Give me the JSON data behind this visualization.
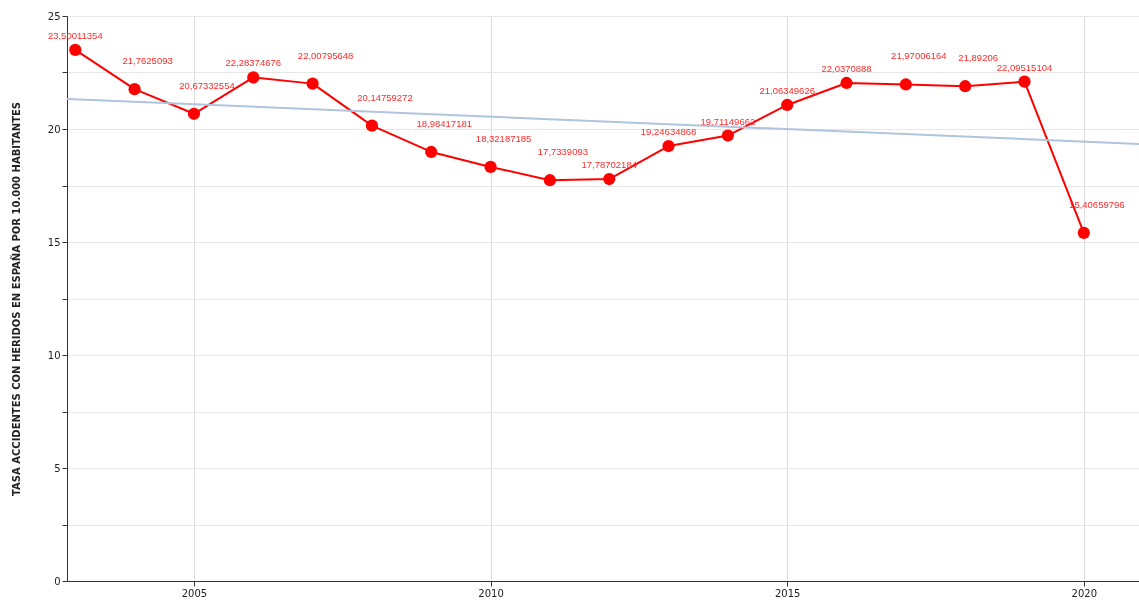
{
  "chart_data": {
    "type": "line",
    "ylabel": "TASA ACCIDENTES CON HERIDOS EN ESPAÑA POR 10.000 HABITANTES",
    "x": [
      2003,
      2004,
      2005,
      2006,
      2007,
      2008,
      2009,
      2010,
      2011,
      2012,
      2013,
      2014,
      2015,
      2016,
      2017,
      2018,
      2019,
      2020
    ],
    "series": [
      {
        "color": "#ff0000",
        "marker": "circle",
        "values": [
          23.50011354,
          21.7625093,
          20.67332554,
          22.28374676,
          22.00795648,
          20.14759272,
          18.98417181,
          18.32187185,
          17.7339093,
          17.78702184,
          19.24634868,
          19.71149662,
          21.06349626,
          22.0370888,
          21.97006164,
          21.89206,
          22.09515104,
          15.40659796
        ],
        "value_labels": [
          "23,50011354",
          "21,7625093",
          "20,67332554",
          "22,28374676",
          "22,00795648",
          "20,14759272",
          "18,98417181",
          "18,32187185",
          "17,7339093",
          "17,78702184",
          "19,24634868",
          "19,71149662",
          "21,06349626",
          "22,0370888",
          "21,97006164",
          "21,89206",
          "22,09515104",
          "15,40659796"
        ]
      },
      {
        "type": "line",
        "color": "#b0c4de",
        "marker": "none",
        "x": [
          2002.86,
          2020.93
        ],
        "values": [
          21.33,
          19.34
        ]
      }
    ],
    "xlim": [
      2002.86,
      2020.93
    ],
    "xticks": [
      2005,
      2010,
      2015,
      2020
    ],
    "ylim": [
      0,
      25
    ],
    "yticks": [
      0,
      {
        "value": 2.5,
        "label": null
      },
      5,
      {
        "value": 7.5,
        "label": null
      },
      10,
      {
        "value": 12.5,
        "label": null
      },
      15,
      {
        "value": 17.5,
        "label": null
      },
      20,
      {
        "value": 22.5,
        "label": null
      },
      25
    ],
    "grid": true,
    "legend": false
  }
}
